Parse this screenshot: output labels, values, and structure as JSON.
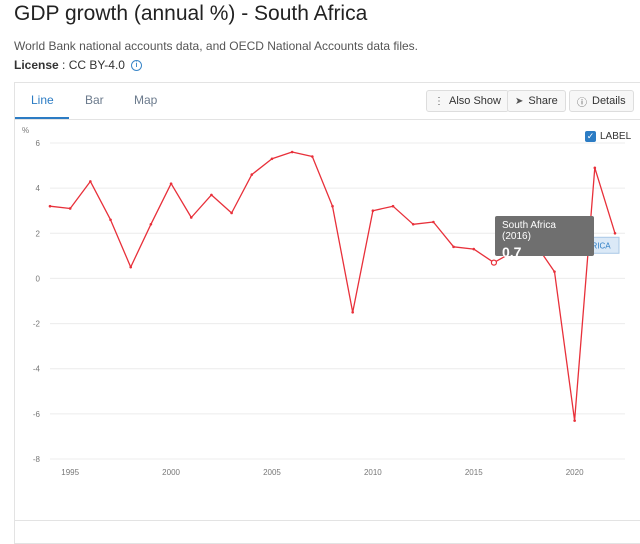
{
  "header": {
    "title": "GDP growth (annual %) - South Africa",
    "subtitle": "World Bank national accounts data, and OECD National Accounts data files.",
    "license_label": "License",
    "license_sep": " : ",
    "license_value": "CC BY-4.0"
  },
  "tabs": [
    {
      "label": "Line"
    },
    {
      "label": "Bar"
    },
    {
      "label": "Map"
    }
  ],
  "toolbar": {
    "also_show": "Also Show",
    "share": "Share",
    "details": "Details"
  },
  "label_toggle": {
    "label": "LABEL",
    "checked": true
  },
  "tooltip": {
    "name": "South Africa (2016)",
    "value": "0.7"
  },
  "series_label": "SOUTH AFRICA",
  "colors": {
    "accent": "#2c7cc4",
    "line": "#e8303a"
  },
  "chart_data": {
    "type": "line",
    "title": "GDP growth (annual %) - South Africa",
    "xlabel": "",
    "ylabel": "%",
    "ylim": [
      -8,
      6
    ],
    "xlim": [
      1994,
      2022
    ],
    "yticks": [
      6,
      4,
      2,
      0,
      -2,
      -4,
      -6,
      -8
    ],
    "xticks": [
      1995,
      2000,
      2005,
      2010,
      2015,
      2020
    ],
    "grid": true,
    "series": [
      {
        "name": "South Africa",
        "x": [
          1994,
          1995,
          1996,
          1997,
          1998,
          1999,
          2000,
          2001,
          2002,
          2003,
          2004,
          2005,
          2006,
          2007,
          2008,
          2009,
          2010,
          2011,
          2012,
          2013,
          2014,
          2015,
          2016,
          2017,
          2018,
          2019,
          2020,
          2021,
          2022
        ],
        "values": [
          3.2,
          3.1,
          4.3,
          2.6,
          0.5,
          2.4,
          4.2,
          2.7,
          3.7,
          2.9,
          4.6,
          5.3,
          5.6,
          5.4,
          3.2,
          -1.5,
          3.0,
          3.2,
          2.4,
          2.5,
          1.4,
          1.3,
          0.7,
          1.2,
          1.6,
          0.3,
          -6.3,
          4.9,
          2.0
        ]
      }
    ]
  }
}
